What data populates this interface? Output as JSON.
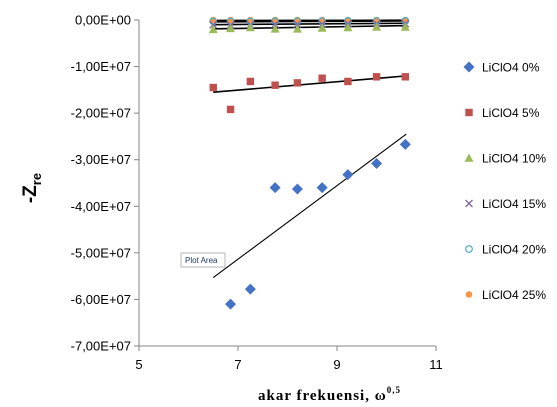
{
  "chart_data": {
    "type": "scatter",
    "xlabel_main": "akar frekuensi, ω",
    "xlabel_sup": "0,5",
    "ylabel_main": "-Z",
    "ylabel_sub": "re",
    "xlim": [
      5,
      11
    ],
    "ylim": [
      -70000000,
      0
    ],
    "x_ticks": [
      5,
      7,
      9,
      11
    ],
    "x_tick_labels": [
      "5",
      "7",
      "9",
      "11"
    ],
    "y_ticks": [
      0,
      -10000000,
      -20000000,
      -30000000,
      -40000000,
      -50000000,
      -60000000,
      -70000000
    ],
    "y_tick_labels": [
      "0,00E+00",
      "-1,00E+07",
      "-2,00E+07",
      "-3,00E+07",
      "-4,00E+07",
      "-5,00E+07",
      "-6,00E+07",
      "-7,00E+07"
    ],
    "grid": false,
    "legend_position": "right",
    "tooltip": "Plot Area",
    "series": [
      {
        "name": "LiClO4 0%",
        "marker": "diamond",
        "color": "#4472c4",
        "x": [
          6.85,
          7.25,
          7.75,
          8.2,
          8.7,
          9.22,
          9.8,
          10.38
        ],
        "y": [
          -61000000,
          -57800000,
          -36000000,
          -36300000,
          -36000000,
          -33200000,
          -30800000,
          -26700000
        ],
        "trend": [
          [
            6.5,
            -55300000
          ],
          [
            10.4,
            -24500000
          ]
        ]
      },
      {
        "name": "LiClO4 5%",
        "marker": "square",
        "color": "#c0504d",
        "x": [
          6.5,
          6.85,
          7.25,
          7.75,
          8.2,
          8.7,
          9.22,
          9.8,
          10.38
        ],
        "y": [
          -14500000,
          -19200000,
          -13200000,
          -14000000,
          -13500000,
          -12500000,
          -13200000,
          -12200000,
          -12200000
        ],
        "trend": [
          [
            6.5,
            -15500000
          ],
          [
            10.4,
            -12000000
          ]
        ]
      },
      {
        "name": "LiClO4 10%",
        "marker": "triangle",
        "color": "#9bbb59",
        "x": [
          6.5,
          6.85,
          7.25,
          7.75,
          8.2,
          8.7,
          9.22,
          9.8,
          10.38
        ],
        "y": [
          -2000000,
          -1800000,
          -1600000,
          -1900000,
          -1900000,
          -1700000,
          -1600000,
          -1500000,
          -1500000
        ],
        "trend": [
          [
            6.5,
            -1900000
          ],
          [
            10.4,
            -1200000
          ]
        ]
      },
      {
        "name": "LiClO4 15%",
        "marker": "x",
        "color": "#8064a2",
        "x": [
          6.5,
          6.85,
          7.25,
          7.75,
          8.2,
          8.7,
          9.22,
          9.8,
          10.38
        ],
        "y": [
          -1000000,
          -1100000,
          -1000000,
          -900000,
          -900000,
          -900000,
          -800000,
          -800000,
          -800000
        ],
        "trend": [
          [
            6.5,
            -1000000
          ],
          [
            10.4,
            -700000
          ]
        ]
      },
      {
        "name": "LiClO4 20%",
        "marker": "circle-open",
        "color": "#4bacc6",
        "x": [
          6.5,
          6.85,
          7.25,
          7.75,
          8.2,
          8.7,
          9.22,
          9.8,
          10.38
        ],
        "y": [
          -300000,
          -300000,
          -300000,
          -250000,
          -250000,
          -250000,
          -200000,
          -200000,
          -200000
        ],
        "trend": [
          [
            6.5,
            -400000
          ],
          [
            10.4,
            -200000
          ]
        ]
      },
      {
        "name": "LiClO4 25%",
        "marker": "circle",
        "color": "#f79646",
        "x": [
          6.5,
          6.85,
          7.25,
          7.75,
          8.2,
          8.7,
          9.22,
          9.8,
          10.38
        ],
        "y": [
          0,
          0,
          0,
          0,
          0,
          0,
          0,
          0,
          0
        ],
        "trend": [
          [
            6.5,
            -100000
          ],
          [
            10.4,
            -50000
          ]
        ]
      }
    ]
  }
}
